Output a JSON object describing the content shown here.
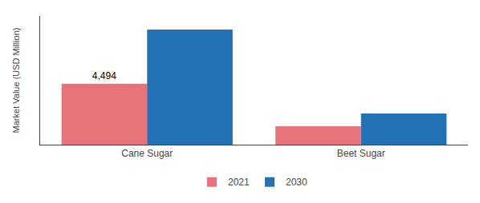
{
  "chart_data": {
    "type": "bar",
    "categories": [
      "Cane Sugar",
      "Beet Sugar"
    ],
    "series": [
      {
        "name": "2021",
        "color": "#e8737a",
        "values": [
          4494,
          1350
        ]
      },
      {
        "name": "2030",
        "color": "#2272b5",
        "values": [
          8500,
          2300
        ]
      }
    ],
    "ylabel": "Market Value (USD Million)",
    "annotations": [
      {
        "text": "4,494",
        "series": "2021",
        "category": "Cane Sugar"
      }
    ],
    "ylim": [
      0,
      9500
    ],
    "yticks": [],
    "tick_labels": "x",
    "grid": false,
    "legend": "bottom"
  }
}
